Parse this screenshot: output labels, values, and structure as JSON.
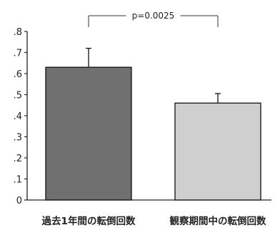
{
  "chart_data": {
    "type": "bar",
    "categories": [
      "過去1年間の転倒回数",
      "観察期間中の転倒回数"
    ],
    "values": [
      0.63,
      0.46
    ],
    "errors": [
      0.09,
      0.045
    ],
    "ylim": [
      0,
      0.8
    ],
    "yticks": [
      {
        "value": 0,
        "label": "0"
      },
      {
        "value": 0.1,
        "label": ".1"
      },
      {
        "value": 0.2,
        "label": ".2"
      },
      {
        "value": 0.3,
        "label": ".3"
      },
      {
        "value": 0.4,
        "label": ".4"
      },
      {
        "value": 0.5,
        "label": ".5"
      },
      {
        "value": 0.6,
        "label": ".6"
      },
      {
        "value": 0.7,
        "label": ".7"
      },
      {
        "value": 0.8,
        "label": ".8"
      }
    ],
    "annotation": "p=0.0025",
    "grid": false,
    "bar_colors": [
      "#707070",
      "#cfcfcf"
    ]
  }
}
